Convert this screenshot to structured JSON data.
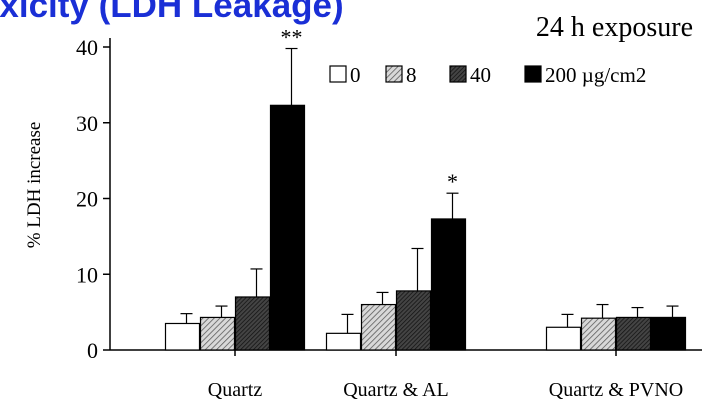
{
  "slide": {
    "title": "oxicity (LDH Leakage)"
  },
  "chart_data": {
    "type": "bar",
    "subtitle": "24 h exposure",
    "ylabel": "% LDH increase",
    "xlabel": "",
    "ylim": [
      0,
      40
    ],
    "yticks": [
      0,
      10,
      20,
      30,
      40
    ],
    "categories": [
      "Quartz",
      "Quartz & AL",
      "Quartz & PVNO"
    ],
    "series": [
      {
        "name": "0",
        "values": [
          3.5,
          2.2,
          3.0
        ],
        "errors": [
          1.3,
          2.5,
          1.7
        ],
        "fill": "white"
      },
      {
        "name": "8",
        "values": [
          4.3,
          6.0,
          4.2
        ],
        "errors": [
          1.5,
          1.6,
          1.8
        ],
        "fill": "hatch-light"
      },
      {
        "name": "40",
        "values": [
          7.0,
          7.8,
          4.3
        ],
        "errors": [
          3.7,
          5.6,
          1.3
        ],
        "fill": "hatch-dark"
      },
      {
        "name": "200 µg/cm2",
        "values": [
          32.3,
          17.3,
          4.3
        ],
        "errors": [
          7.5,
          3.4,
          1.5
        ],
        "fill": "black"
      }
    ],
    "significance": [
      {
        "category": "Quartz",
        "series": "200 µg/cm2",
        "label": "**"
      },
      {
        "category": "Quartz & AL",
        "series": "200 µg/cm2",
        "label": "*"
      }
    ],
    "legend_position": "top-right",
    "grid": false
  }
}
